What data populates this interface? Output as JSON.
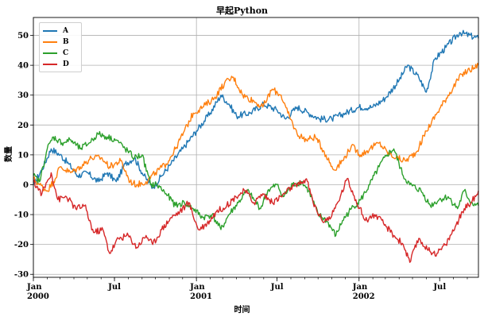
{
  "chart_data": {
    "type": "line",
    "title": "早起Python",
    "xlabel": "时间",
    "ylabel": "数量",
    "x_start": "2000-01-01",
    "x_end": "2002-09-26",
    "ylim": [
      -31,
      56
    ],
    "yticks": [
      -30,
      -20,
      -10,
      0,
      10,
      20,
      30,
      40,
      50
    ],
    "xticks": [
      {
        "date": "2000-01-01",
        "label": "Jan",
        "sublabel": "2000"
      },
      {
        "date": "2000-07-01",
        "label": "Jul",
        "sublabel": ""
      },
      {
        "date": "2001-01-01",
        "label": "Jan",
        "sublabel": "2001"
      },
      {
        "date": "2001-07-01",
        "label": "Jul",
        "sublabel": ""
      },
      {
        "date": "2002-01-01",
        "label": "Jan",
        "sublabel": "2002"
      },
      {
        "date": "2002-07-01",
        "label": "Jul",
        "sublabel": ""
      }
    ],
    "grid": true,
    "legend_position": "top-left",
    "series": [
      {
        "name": "A",
        "color": "#1f77b4",
        "points": [
          [
            "2000-01-01",
            0
          ],
          [
            "2000-01-20",
            5
          ],
          [
            "2000-02-10",
            12
          ],
          [
            "2000-03-01",
            10
          ],
          [
            "2000-03-20",
            7
          ],
          [
            "2000-04-10",
            3
          ],
          [
            "2000-05-01",
            4
          ],
          [
            "2000-05-25",
            1
          ],
          [
            "2000-06-15",
            4
          ],
          [
            "2000-07-05",
            1
          ],
          [
            "2000-07-25",
            7
          ],
          [
            "2000-08-15",
            9
          ],
          [
            "2000-09-05",
            3
          ],
          [
            "2000-09-25",
            -1
          ],
          [
            "2000-10-15",
            3
          ],
          [
            "2000-11-05",
            7
          ],
          [
            "2000-12-01",
            12
          ],
          [
            "2001-01-01",
            18
          ],
          [
            "2001-02-01",
            24
          ],
          [
            "2001-02-25",
            30
          ],
          [
            "2001-03-15",
            27
          ],
          [
            "2001-04-01",
            23
          ],
          [
            "2001-05-01",
            24
          ],
          [
            "2001-06-01",
            27
          ],
          [
            "2001-07-01",
            25
          ],
          [
            "2001-07-20",
            22
          ],
          [
            "2001-08-15",
            26
          ],
          [
            "2001-09-10",
            24
          ],
          [
            "2001-10-05",
            22
          ],
          [
            "2001-11-01",
            22
          ],
          [
            "2001-12-01",
            24
          ],
          [
            "2002-01-01",
            26
          ],
          [
            "2002-02-01",
            26
          ],
          [
            "2002-03-01",
            29
          ],
          [
            "2002-04-01",
            35
          ],
          [
            "2002-04-20",
            40
          ],
          [
            "2002-05-15",
            36
          ],
          [
            "2002-06-01",
            31
          ],
          [
            "2002-06-20",
            42
          ],
          [
            "2002-07-15",
            46
          ],
          [
            "2002-08-15",
            51
          ],
          [
            "2002-09-26",
            49
          ]
        ]
      },
      {
        "name": "B",
        "color": "#ff7f0e",
        "points": [
          [
            "2000-01-01",
            2
          ],
          [
            "2000-01-15",
            0
          ],
          [
            "2000-02-01",
            -2
          ],
          [
            "2000-02-15",
            1
          ],
          [
            "2000-03-01",
            6
          ],
          [
            "2000-03-25",
            4
          ],
          [
            "2000-04-15",
            6
          ],
          [
            "2000-05-10",
            9
          ],
          [
            "2000-06-01",
            9
          ],
          [
            "2000-06-20",
            6
          ],
          [
            "2000-07-15",
            8
          ],
          [
            "2000-08-05",
            1
          ],
          [
            "2000-08-20",
            0
          ],
          [
            "2000-09-10",
            1
          ],
          [
            "2000-10-01",
            4
          ],
          [
            "2000-10-25",
            7
          ],
          [
            "2000-11-15",
            12
          ],
          [
            "2000-12-05",
            18
          ],
          [
            "2000-12-25",
            24
          ],
          [
            "2001-01-15",
            26
          ],
          [
            "2001-02-10",
            29
          ],
          [
            "2001-03-05",
            34
          ],
          [
            "2001-03-25",
            36
          ],
          [
            "2001-04-15",
            30
          ],
          [
            "2001-05-10",
            28
          ],
          [
            "2001-05-30",
            26
          ],
          [
            "2001-06-20",
            32
          ],
          [
            "2001-07-10",
            30
          ],
          [
            "2001-07-25",
            24
          ],
          [
            "2001-08-15",
            17
          ],
          [
            "2001-09-05",
            15
          ],
          [
            "2001-09-25",
            16
          ],
          [
            "2001-10-15",
            11
          ],
          [
            "2001-11-05",
            5
          ],
          [
            "2001-11-25",
            8
          ],
          [
            "2001-12-15",
            13
          ],
          [
            "2002-01-05",
            10
          ],
          [
            "2002-01-25",
            12
          ],
          [
            "2002-02-15",
            14
          ],
          [
            "2002-03-05",
            11
          ],
          [
            "2002-03-25",
            9
          ],
          [
            "2002-04-15",
            8
          ],
          [
            "2002-05-10",
            11
          ],
          [
            "2002-06-01",
            18
          ],
          [
            "2002-06-25",
            24
          ],
          [
            "2002-07-20",
            30
          ],
          [
            "2002-08-20",
            37
          ],
          [
            "2002-09-26",
            40
          ]
        ]
      },
      {
        "name": "C",
        "color": "#2ca02c",
        "points": [
          [
            "2000-01-01",
            3
          ],
          [
            "2000-01-15",
            1
          ],
          [
            "2000-02-01",
            12
          ],
          [
            "2000-02-15",
            16
          ],
          [
            "2000-03-05",
            14
          ],
          [
            "2000-03-25",
            15
          ],
          [
            "2000-04-15",
            12
          ],
          [
            "2000-05-05",
            14
          ],
          [
            "2000-05-25",
            17
          ],
          [
            "2000-06-15",
            16
          ],
          [
            "2000-07-05",
            15
          ],
          [
            "2000-07-25",
            12
          ],
          [
            "2000-08-15",
            9
          ],
          [
            "2000-09-01",
            10
          ],
          [
            "2000-09-20",
            0
          ],
          [
            "2000-10-05",
            0
          ],
          [
            "2000-10-25",
            -3
          ],
          [
            "2000-11-15",
            -7
          ],
          [
            "2000-12-05",
            -6
          ],
          [
            "2000-12-25",
            -8
          ],
          [
            "2001-01-15",
            -11
          ],
          [
            "2001-02-05",
            -10
          ],
          [
            "2001-02-25",
            -15
          ],
          [
            "2001-03-15",
            -10
          ],
          [
            "2001-04-05",
            -6
          ],
          [
            "2001-04-25",
            -2
          ],
          [
            "2001-05-10",
            -5
          ],
          [
            "2001-05-25",
            -8
          ],
          [
            "2001-06-10",
            -2
          ],
          [
            "2001-07-01",
            0
          ],
          [
            "2001-07-15",
            -4
          ],
          [
            "2001-08-05",
            0
          ],
          [
            "2001-08-25",
            1
          ],
          [
            "2001-09-10",
            -2
          ],
          [
            "2001-10-01",
            -10
          ],
          [
            "2001-10-20",
            -12
          ],
          [
            "2001-11-10",
            -17
          ],
          [
            "2001-11-25",
            -12
          ],
          [
            "2001-12-15",
            -8
          ],
          [
            "2002-01-05",
            -5
          ],
          [
            "2002-01-25",
            0
          ],
          [
            "2002-02-15",
            6
          ],
          [
            "2002-03-05",
            10
          ],
          [
            "2002-03-20",
            12
          ],
          [
            "2002-04-10",
            3
          ],
          [
            "2002-04-25",
            0
          ],
          [
            "2002-05-20",
            -2
          ],
          [
            "2002-06-10",
            -7
          ],
          [
            "2002-06-30",
            -5
          ],
          [
            "2002-07-20",
            -4
          ],
          [
            "2002-08-10",
            -8
          ],
          [
            "2002-08-25",
            -2
          ],
          [
            "2002-09-10",
            -6
          ],
          [
            "2002-09-26",
            -7
          ]
        ]
      },
      {
        "name": "D",
        "color": "#d62728",
        "points": [
          [
            "2000-01-01",
            1
          ],
          [
            "2000-01-20",
            -3
          ],
          [
            "2000-02-10",
            4
          ],
          [
            "2000-02-25",
            -5
          ],
          [
            "2000-03-15",
            -4
          ],
          [
            "2000-04-05",
            -8
          ],
          [
            "2000-04-25",
            -7
          ],
          [
            "2000-05-15",
            -16
          ],
          [
            "2000-06-05",
            -15
          ],
          [
            "2000-06-20",
            -23
          ],
          [
            "2000-07-10",
            -18
          ],
          [
            "2000-08-01",
            -17
          ],
          [
            "2000-08-20",
            -21
          ],
          [
            "2000-09-10",
            -17
          ],
          [
            "2000-09-25",
            -20
          ],
          [
            "2000-10-15",
            -15
          ],
          [
            "2000-11-05",
            -11
          ],
          [
            "2000-11-25",
            -9
          ],
          [
            "2000-12-15",
            -6
          ],
          [
            "2001-01-05",
            -15
          ],
          [
            "2001-01-25",
            -13
          ],
          [
            "2001-02-15",
            -9
          ],
          [
            "2001-03-10",
            -7
          ],
          [
            "2001-03-30",
            -4
          ],
          [
            "2001-04-20",
            -2
          ],
          [
            "2001-05-10",
            -6
          ],
          [
            "2001-05-30",
            -3
          ],
          [
            "2001-06-20",
            -6
          ],
          [
            "2001-07-10",
            -4
          ],
          [
            "2001-08-01",
            -1
          ],
          [
            "2001-08-20",
            0
          ],
          [
            "2001-09-05",
            2
          ],
          [
            "2001-09-20",
            -6
          ],
          [
            "2001-10-10",
            -12
          ],
          [
            "2001-10-30",
            -11
          ],
          [
            "2001-11-20",
            -4
          ],
          [
            "2001-12-05",
            2
          ],
          [
            "2001-12-25",
            -5
          ],
          [
            "2002-01-15",
            -12
          ],
          [
            "2002-02-05",
            -10
          ],
          [
            "2002-02-25",
            -13
          ],
          [
            "2002-03-20",
            -17
          ],
          [
            "2002-04-10",
            -20
          ],
          [
            "2002-04-25",
            -26
          ],
          [
            "2002-05-15",
            -18
          ],
          [
            "2002-06-05",
            -22
          ],
          [
            "2002-06-25",
            -23
          ],
          [
            "2002-07-15",
            -20
          ],
          [
            "2002-08-05",
            -14
          ],
          [
            "2002-08-25",
            -8
          ],
          [
            "2002-09-10",
            -6
          ],
          [
            "2002-09-26",
            -2
          ]
        ]
      }
    ]
  }
}
